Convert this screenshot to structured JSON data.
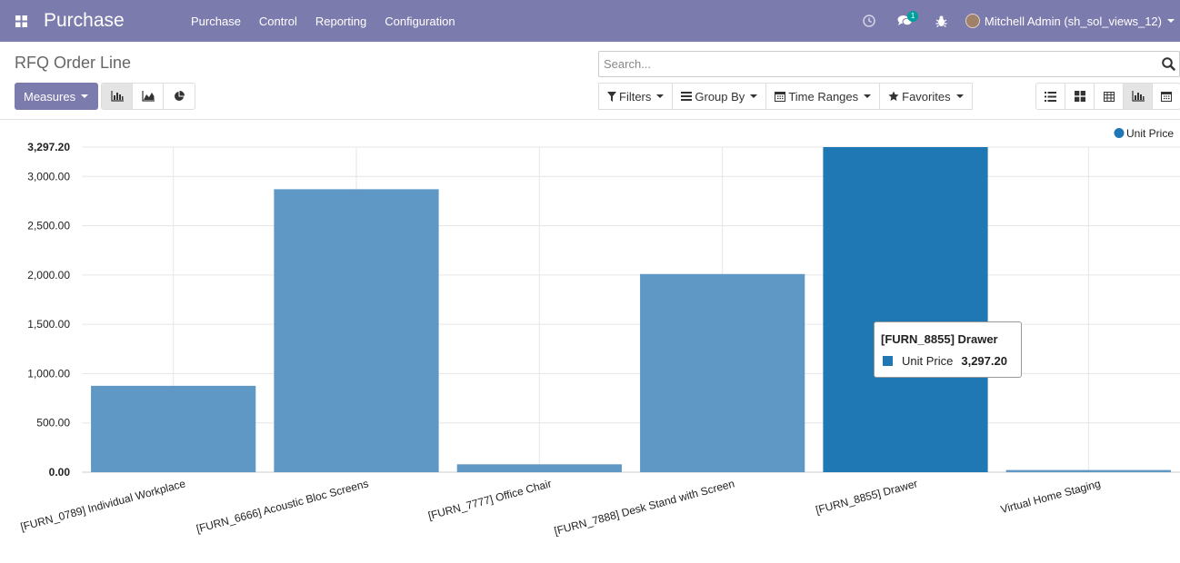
{
  "navbar": {
    "app_name": "Purchase",
    "menu": [
      "Purchase",
      "Control",
      "Reporting",
      "Configuration"
    ],
    "message_count": "1",
    "user": "Mitchell Admin (sh_sol_views_12)"
  },
  "control_panel": {
    "breadcrumb": "RFQ Order Line",
    "search_placeholder": "Search...",
    "measures_label": "Measures",
    "filters_label": "Filters",
    "group_by_label": "Group By",
    "time_ranges_label": "Time Ranges",
    "favorites_label": "Favorites"
  },
  "chart_data": {
    "type": "bar",
    "categories": [
      "[FURN_0789] Individual Workplace",
      "[FURN_6666] Acoustic Bloc Screens",
      "[FURN_7777] Office Chair",
      "[FURN_7888] Desk Stand with Screen",
      "[FURN_8855] Drawer",
      "Virtual Home Staging"
    ],
    "series": [
      {
        "name": "Unit Price",
        "values": [
          876,
          2870,
          80,
          2010,
          3297.2,
          22
        ]
      }
    ],
    "ylim": [
      0,
      3297.2
    ],
    "yticks": [
      "0.00",
      "500.00",
      "1,000.00",
      "1,500.00",
      "2,000.00",
      "2,500.00",
      "3,000.00",
      "3,297.20"
    ],
    "legend": "top-right",
    "grid": true,
    "colors": {
      "bar": "#5f97c5",
      "highlight": "#1f77b4"
    },
    "highlight_index": 4
  },
  "tooltip": {
    "title": "[FURN_8855] Drawer",
    "series_name": "Unit Price",
    "value": "3,297.20"
  }
}
